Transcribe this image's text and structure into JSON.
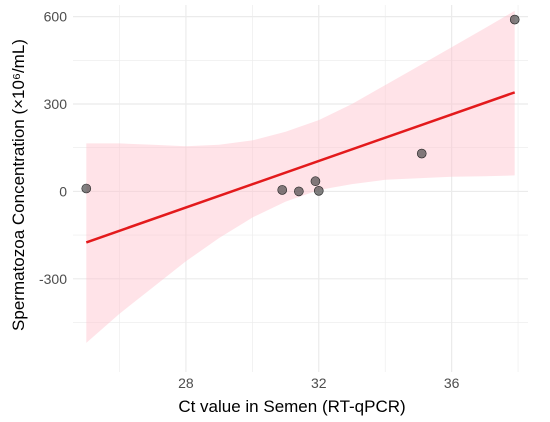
{
  "chart_data": {
    "type": "scatter",
    "xlabel": "Ct value in Semen (RT-qPCR)",
    "ylabel": "Spermatozoa Concentration (×10⁶/mL)",
    "xlim": [
      24.6,
      38.3
    ],
    "ylim": [
      -620,
      640
    ],
    "x_ticks": [
      28,
      32,
      36
    ],
    "x_tick_labels": [
      "28",
      "32",
      "36"
    ],
    "y_ticks": [
      -300,
      0,
      300,
      600
    ],
    "y_tick_labels": [
      "-300",
      "0",
      "300",
      "600"
    ],
    "points": [
      {
        "x": 25.0,
        "y": 10
      },
      {
        "x": 30.9,
        "y": 5
      },
      {
        "x": 31.4,
        "y": 0
      },
      {
        "x": 31.9,
        "y": 35
      },
      {
        "x": 32.0,
        "y": 2
      },
      {
        "x": 35.1,
        "y": 130
      },
      {
        "x": 37.9,
        "y": 590
      }
    ],
    "regression_line": {
      "x": [
        25.0,
        37.9
      ],
      "y": [
        -175,
        340
      ]
    },
    "confidence_band": {
      "x": [
        25.0,
        26.0,
        27.0,
        28.0,
        29.0,
        30.0,
        31.0,
        32.0,
        33.0,
        34.0,
        35.0,
        36.0,
        37.0,
        37.9
      ],
      "lower": [
        -520,
        -420,
        -330,
        -240,
        -160,
        -90,
        -35,
        5,
        25,
        40,
        45,
        50,
        52,
        55
      ],
      "upper": [
        165,
        165,
        160,
        155,
        160,
        175,
        205,
        245,
        300,
        365,
        430,
        495,
        560,
        620
      ]
    },
    "colors": {
      "points": "#3d3d3d",
      "line": "#e31a1c",
      "band": "#ffc0cb",
      "grid": "#ebebeb"
    },
    "grid": true,
    "legend": "none"
  }
}
